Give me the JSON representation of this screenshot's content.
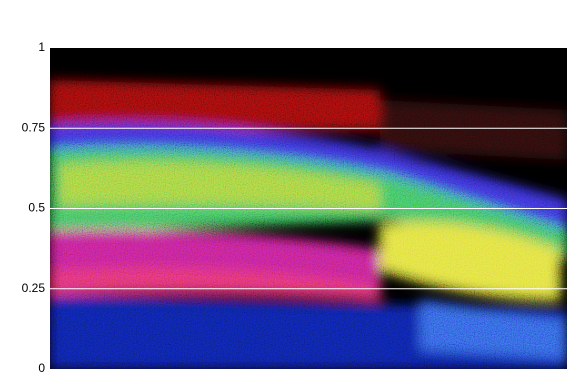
{
  "chart_data": {
    "type": "image",
    "ylim": [
      0,
      1
    ],
    "yticks": [
      0,
      0.25,
      0.5,
      0.75,
      1
    ],
    "grid": true,
    "grid_color": "#ffffff"
  }
}
